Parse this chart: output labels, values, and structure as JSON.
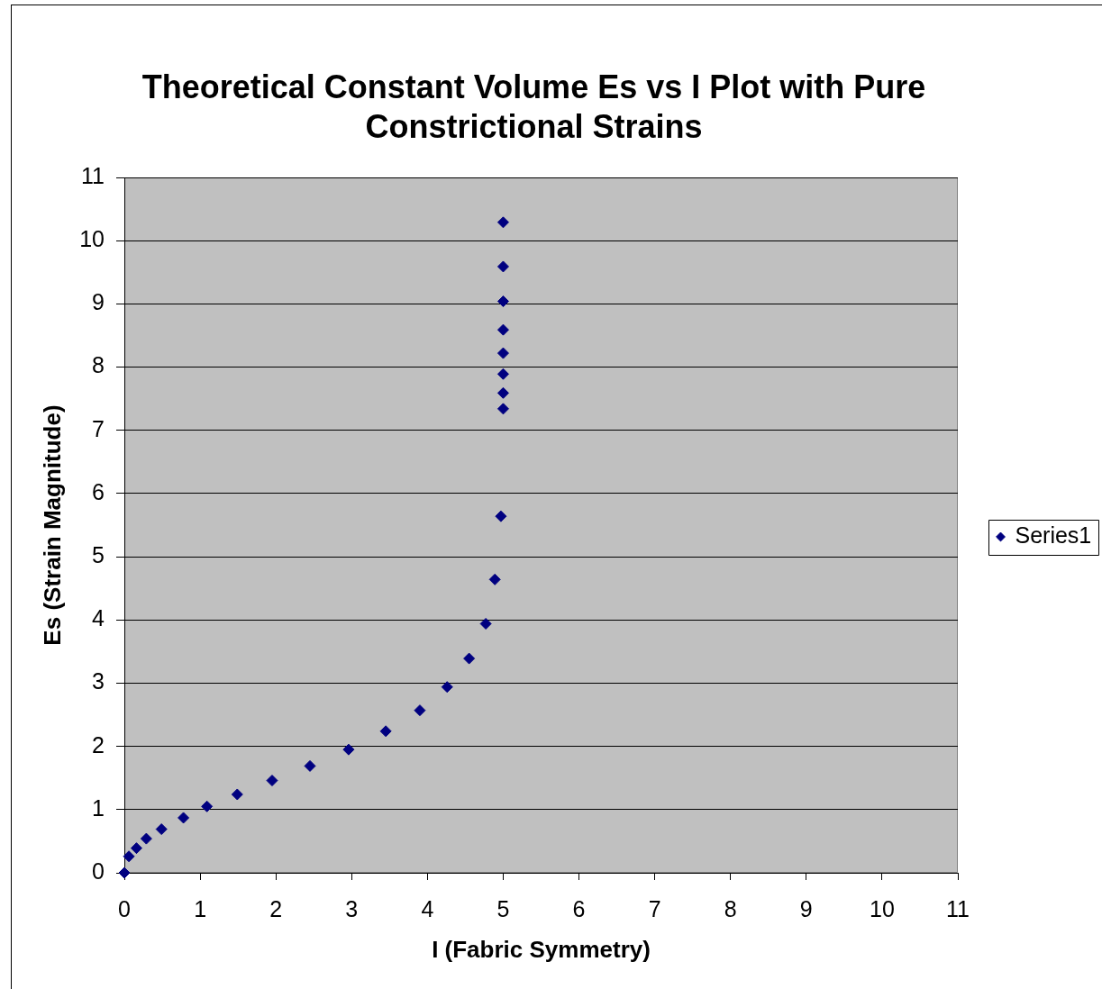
{
  "chart_data": {
    "type": "scatter",
    "title": "Theoretical Constant Volume Es vs I Plot with Pure Constrictional Strains",
    "xlabel": "I (Fabric Symmetry)",
    "ylabel": "Es (Strain Magnitude)",
    "x": [
      0,
      0.06,
      0.16,
      0.29,
      0.49,
      0.78,
      1.09,
      1.49,
      1.95,
      2.45,
      2.96,
      3.45,
      3.9,
      4.26,
      4.55,
      4.77,
      4.89,
      4.97,
      5,
      5,
      5,
      5,
      5,
      5,
      5,
      5
    ],
    "series": [
      {
        "name": "Series1",
        "color": "#000080",
        "values": [
          0,
          0.26,
          0.39,
          0.54,
          0.69,
          0.87,
          1.05,
          1.24,
          1.46,
          1.69,
          1.95,
          2.24,
          2.57,
          2.94,
          3.39,
          3.94,
          4.64,
          5.64,
          7.34,
          7.59,
          7.89,
          8.22,
          8.59,
          9.04,
          9.59,
          10.29
        ]
      }
    ],
    "xlim": [
      0,
      11
    ],
    "xticks": [
      0,
      1,
      2,
      3,
      4,
      5,
      6,
      7,
      8,
      9,
      10,
      11
    ],
    "ylim": [
      0,
      11
    ],
    "yticks": [
      0,
      1,
      2,
      3,
      4,
      5,
      6,
      7,
      8,
      9,
      10,
      11
    ],
    "grid": "y",
    "legend": "right",
    "marker": "diamond"
  }
}
